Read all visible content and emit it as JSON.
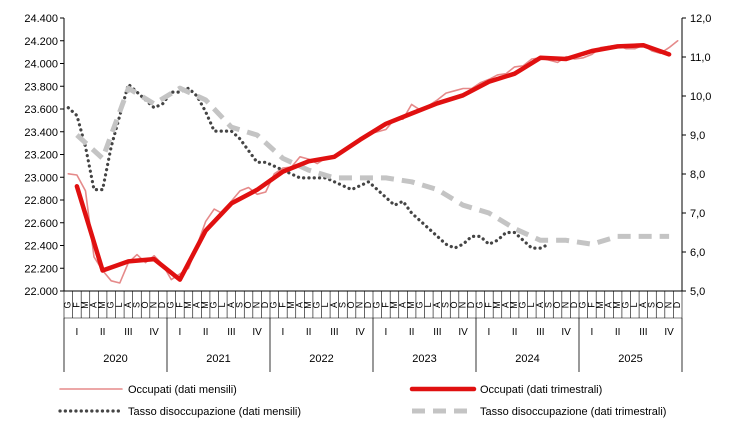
{
  "chart_data": {
    "type": "line",
    "title": "",
    "xlabel": "",
    "ylabel_left": "",
    "ylabel_right": "",
    "grid": false,
    "legend_position": "bottom",
    "y_left": {
      "min": 22000,
      "max": 24400,
      "tick_labels": [
        "22.000",
        "22.200",
        "22.400",
        "22.600",
        "22.800",
        "23.000",
        "23.200",
        "23.400",
        "23.600",
        "23.800",
        "24.000",
        "24.200",
        "24.400"
      ]
    },
    "y_right": {
      "min": 5.0,
      "max": 12.0,
      "tick_labels": [
        "5,0",
        "6,0",
        "7,0",
        "8,0",
        "9,0",
        "10,0",
        "11,0",
        "12,0"
      ]
    },
    "x_axis": {
      "years": [
        "2020",
        "2021",
        "2022",
        "2023",
        "2024",
        "2025"
      ],
      "quarters": [
        "I",
        "II",
        "III",
        "IV"
      ],
      "months": [
        "G",
        "F",
        "M",
        "A",
        "M",
        "G",
        "L",
        "A",
        "S",
        "O",
        "N",
        "D"
      ]
    },
    "series": [
      {
        "name": "Occupati (dati mensili)",
        "axis": "left",
        "color": "#e58a8a",
        "style": "thin",
        "values": [
          23030,
          23020,
          22880,
          22300,
          22180,
          22090,
          22070,
          22250,
          22320,
          22250,
          22310,
          22230,
          22100,
          22150,
          22200,
          22400,
          22610,
          22720,
          22680,
          22790,
          22880,
          22910,
          22850,
          22870,
          23030,
          23080,
          23090,
          23180,
          23160,
          23120,
          23170,
          23180,
          23240,
          23290,
          23340,
          23380,
          23400,
          23420,
          23510,
          23510,
          23640,
          23590,
          23630,
          23680,
          23740,
          23760,
          23780,
          23780,
          23830,
          23860,
          23900,
          23910,
          23970,
          23980,
          24040,
          24050,
          24030,
          24010,
          24060,
          24040,
          24050,
          24080,
          24140,
          24150,
          24160,
          24130,
          24130,
          24160,
          24110,
          24090,
          24140,
          24200
        ]
      },
      {
        "name": "Occupati (dati trimestrali)",
        "axis": "left",
        "color": "#e01010",
        "style": "thick",
        "values": [
          22920,
          22180,
          22260,
          22280,
          22100,
          22530,
          22770,
          22890,
          23050,
          23140,
          23180,
          23330,
          23470,
          23560,
          23650,
          23720,
          23840,
          23910,
          24050,
          24040,
          24110,
          24150,
          24160,
          24080
        ]
      },
      {
        "name": "Tasso disoccupazione (dati mensili)",
        "axis": "right",
        "color": "#444444",
        "style": "dotted",
        "values": [
          9.7,
          9.5,
          8.7,
          7.6,
          7.6,
          8.7,
          9.5,
          10.3,
          10.1,
          9.9,
          9.7,
          9.8,
          10.1,
          10.1,
          10.2,
          10.0,
          9.6,
          9.1,
          9.1,
          9.1,
          8.9,
          8.6,
          8.3,
          8.3,
          8.2,
          8.1,
          8.0,
          7.9,
          7.9,
          7.9,
          7.9,
          7.8,
          7.7,
          7.6,
          7.7,
          7.8,
          7.6,
          7.4,
          7.2,
          7.3,
          7.0,
          6.8,
          6.6,
          6.4,
          6.2,
          6.1,
          6.2,
          6.4,
          6.4,
          6.2,
          6.3,
          6.5,
          6.5,
          6.3,
          6.1,
          6.1,
          6.2
        ]
      },
      {
        "name": "Tasso disoccupazione (dati trimestrali)",
        "axis": "right",
        "color": "#c4c4c4",
        "style": "dashed",
        "values": [
          9.0,
          8.4,
          10.2,
          9.8,
          10.2,
          9.9,
          9.2,
          9.0,
          8.4,
          8.1,
          7.9,
          7.9,
          7.9,
          7.8,
          7.6,
          7.2,
          7.0,
          6.6,
          6.3,
          6.3,
          6.2,
          6.4,
          6.4,
          6.4
        ]
      }
    ]
  }
}
